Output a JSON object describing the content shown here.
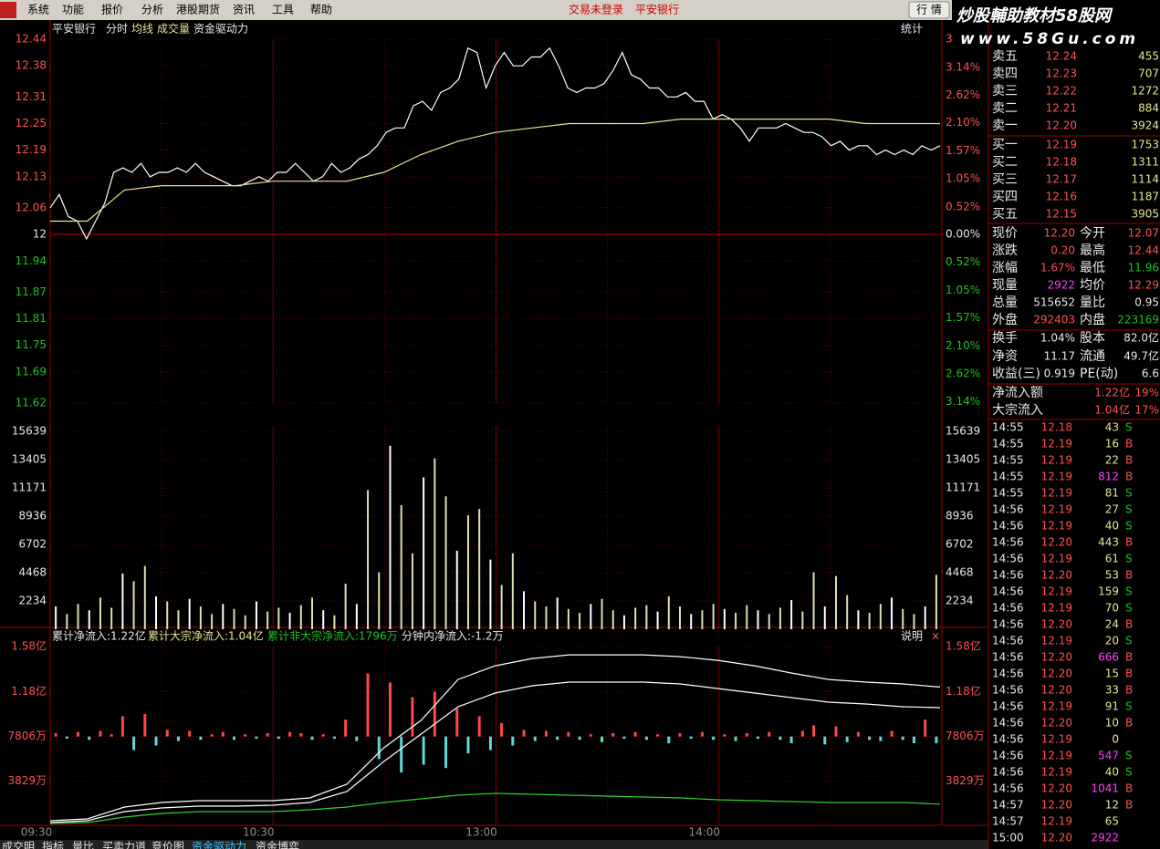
{
  "menu": {
    "items": [
      "系统",
      "功能",
      "报价",
      "分析",
      "港股期货",
      "资讯",
      "工具",
      "帮助"
    ],
    "status": [
      "交易未登录",
      "平安银行"
    ],
    "button": "行 情",
    "banner": {
      "title": "炒股輔助教材58股网",
      "url": "www.58Gu.com"
    }
  },
  "chart_header": {
    "stock": "平安银行",
    "tabs": [
      "分时",
      "均线",
      "成交量",
      "资金驱动力"
    ],
    "stats": "统计"
  },
  "flow_header": {
    "items": [
      "累计净流入:1.22亿",
      "累计大宗净流入:1.04亿",
      "累计非大宗净流入:1796万",
      "分钟内净流入:-1.2万"
    ],
    "help": "说明",
    "close": "×"
  },
  "chart_data": [
    {
      "type": "line",
      "baseline": 12,
      "series": [
        {
          "color": "#ffffff",
          "values": [
            12.06,
            12.09,
            12.04,
            12.03,
            11.99,
            12.03,
            12.07,
            12.14,
            12.15,
            12.14,
            12.16,
            12.13,
            12.14,
            12.14,
            12.15,
            12.14,
            12.16,
            12.14,
            12.13,
            12.12,
            12.11,
            12.11,
            12.12,
            12.13,
            12.12,
            12.14,
            12.14,
            12.16,
            12.14,
            12.12,
            12.13,
            12.16,
            12.14,
            12.15,
            12.17,
            12.18,
            12.2,
            12.23,
            12.24,
            12.24,
            12.29,
            12.3,
            12.28,
            12.32,
            12.33,
            12.35,
            12.42,
            12.41,
            12.33,
            12.38,
            12.41,
            12.38,
            12.38,
            12.4,
            12.4,
            12.42,
            12.38,
            12.33,
            12.32,
            12.33,
            12.33,
            12.34,
            12.37,
            12.41,
            12.36,
            12.35,
            12.33,
            12.33,
            12.31,
            12.31,
            12.32,
            12.3,
            12.3,
            12.26,
            12.27,
            12.26,
            12.24,
            12.21,
            12.24,
            12.24,
            12.24,
            12.25,
            12.24,
            12.23,
            12.23,
            12.22,
            12.2,
            12.21,
            12.19,
            12.2,
            12.2,
            12.18,
            12.19,
            12.18,
            12.19,
            12.18,
            12.2,
            12.19,
            12.2
          ]
        },
        {
          "color": "#e6e68c",
          "values": [
            12.03,
            12.03,
            12.1,
            12.11,
            12.11,
            12.11,
            12.12,
            12.12,
            12.12,
            12.14,
            12.18,
            12.21,
            12.23,
            12.24,
            12.25,
            12.25,
            12.25,
            12.26,
            12.26,
            12.26,
            12.26,
            12.26,
            12.25,
            12.25,
            12.25
          ]
        }
      ],
      "ylim": [
        11.62,
        12.44
      ],
      "yticks": [
        12.44,
        12.38,
        12.31,
        12.25,
        12.19,
        12.13,
        12.06,
        12,
        11.94,
        11.87,
        11.81,
        11.75,
        11.69,
        11.62
      ],
      "y2lim": [
        -3.17,
        3.67
      ],
      "y2ticks": [
        {
          "value": 3.67,
          "label": "3"
        },
        {
          "value": 3.14,
          "label": "3.14%"
        },
        {
          "value": 2.62,
          "label": "2.62%"
        },
        {
          "value": 2.1,
          "label": "2.10%"
        },
        {
          "value": 1.57,
          "label": "1.57%"
        },
        {
          "value": 1.05,
          "label": "1.05%"
        },
        {
          "value": 0.52,
          "label": "0.52%"
        },
        {
          "value": 0,
          "label": "0.00%"
        },
        {
          "value": -0.52,
          "label": "0.52%"
        },
        {
          "value": -1.05,
          "label": "1.05%"
        },
        {
          "value": -1.57,
          "label": "1.57%"
        },
        {
          "value": -2.1,
          "label": "2.10%"
        },
        {
          "value": -2.62,
          "label": "2.62%"
        },
        {
          "value": -3.14,
          "label": "3.14%"
        }
      ]
    },
    {
      "type": "bar",
      "color": "#e0e0b0",
      "values": [
        1800,
        1200,
        2000,
        1500,
        2500,
        1700,
        4400,
        3800,
        5000,
        2600,
        2200,
        1500,
        2400,
        1800,
        1200,
        2000,
        1600,
        1100,
        2200,
        1400,
        1700,
        1300,
        1900,
        2500,
        1500,
        1100,
        3600,
        2000,
        11000,
        4500,
        14500,
        9800,
        6000,
        12000,
        13500,
        10500,
        6200,
        9000,
        9500,
        5500,
        3500,
        6000,
        3000,
        2200,
        1800,
        2500,
        1600,
        1300,
        2000,
        2400,
        1500,
        1100,
        1700,
        1900,
        1400,
        2600,
        1800,
        1200,
        1500,
        2000,
        1600,
        1300,
        1900,
        1500,
        1200,
        1700,
        2300,
        1400,
        4500,
        1800,
        4200,
        2700,
        1500,
        1300,
        2000,
        2500,
        1600,
        1200,
        1800,
        4300
      ],
      "ylim": [
        0,
        15639
      ],
      "yticks": [
        15639,
        13405,
        11171,
        8936,
        6702,
        4468,
        2234
      ]
    },
    {
      "type": "line",
      "series": [
        {
          "color": "#ffffff",
          "values": [
            324,
            486,
            1539,
            1944,
            2106,
            2106,
            2106,
            2349,
            3564,
            6804,
            9234,
            12879,
            14094,
            14742,
            15066,
            15066,
            15066,
            14904,
            14580,
            14094,
            13446,
            12879,
            12636,
            12474,
            12200
          ]
        },
        {
          "color": "#ffffff",
          "values": [
            162,
            324,
            1134,
            1458,
            1620,
            1620,
            1701,
            1944,
            2916,
            5589,
            8019,
            10449,
            11664,
            12312,
            12636,
            12636,
            12636,
            12474,
            12069,
            11664,
            11259,
            10854,
            10692,
            10449,
            10368
          ]
        },
        {
          "color": "#30d030",
          "values": [
            81,
            162,
            648,
            972,
            1134,
            1134,
            1134,
            1296,
            1539,
            1944,
            2268,
            2592,
            2754,
            2673,
            2592,
            2511,
            2430,
            2349,
            2187,
            2106,
            2025,
            1944,
            1944,
            1944,
            1796
          ]
        }
      ],
      "bars": {
        "base": 7806,
        "up_color": "#ff4848",
        "down_color": "#60d8d8",
        "values": [
          300,
          -200,
          400,
          -300,
          500,
          200,
          1800,
          -1200,
          2000,
          -800,
          600,
          -400,
          500,
          -300,
          200,
          400,
          -300,
          200,
          -200,
          300,
          -200,
          400,
          300,
          -300,
          200,
          -200,
          1500,
          -400,
          5600,
          -2000,
          4800,
          -3200,
          3500,
          -2500,
          4000,
          -2800,
          2500,
          -1500,
          1800,
          -1200,
          1200,
          -800,
          600,
          -400,
          500,
          -300,
          400,
          -300,
          200,
          -500,
          300,
          -200,
          400,
          -300,
          200,
          -600,
          300,
          -200,
          400,
          -300,
          200,
          -400,
          300,
          -200,
          400,
          -300,
          -600,
          500,
          1000,
          -700,
          900,
          -500,
          400,
          -300,
          -400,
          500,
          -300,
          -600,
          1500,
          -600
        ]
      },
      "ylim": [
        0,
        15800
      ],
      "yticks": [
        {
          "value": 15800,
          "label": "1.58亿"
        },
        {
          "value": 11800,
          "label": "1.18亿"
        },
        {
          "value": 7806,
          "label": "7806万"
        },
        {
          "value": 3829,
          "label": "3829万"
        }
      ],
      "xticks": [
        "09:30",
        "10:30",
        "13:00",
        "14:00"
      ]
    }
  ],
  "order_book": [
    [
      "卖五",
      "12.24",
      "455"
    ],
    [
      "卖四",
      "12.23",
      "707"
    ],
    [
      "卖三",
      "12.22",
      "1272"
    ],
    [
      "卖二",
      "12.21",
      "884"
    ],
    [
      "卖一",
      "12.20",
      "3924"
    ],
    [
      "买一",
      "12.19",
      "1753"
    ],
    [
      "买二",
      "12.18",
      "1311"
    ],
    [
      "买三",
      "12.17",
      "1114"
    ],
    [
      "买四",
      "12.16",
      "1187"
    ],
    [
      "买五",
      "12.15",
      "3905"
    ]
  ],
  "quote": [
    [
      "现价",
      "12.20",
      "今开",
      "12.07"
    ],
    [
      "涨跌",
      "0.20",
      "最高",
      "12.44"
    ],
    [
      "涨幅",
      "1.67%",
      "最低",
      "11.96"
    ],
    [
      "现量",
      "2922",
      "均价",
      "12.29"
    ],
    [
      "总量",
      "515652",
      "量比",
      "0.95"
    ],
    [
      "外盘",
      "292403",
      "内盘",
      "223169"
    ],
    [
      "换手",
      "1.04%",
      "股本",
      "82.0亿"
    ],
    [
      "净资",
      "11.17",
      "流通",
      "49.7亿"
    ],
    [
      "收益(三)",
      "0.919",
      "PE(动)",
      "6.6"
    ],
    [
      "净流入额",
      "1.22亿",
      "19%"
    ],
    [
      "大宗流入",
      "1.04亿",
      "17%"
    ]
  ],
  "trades": [
    [
      "14:55",
      "12.18",
      "43",
      "S"
    ],
    [
      "14:55",
      "12.19",
      "16",
      "B"
    ],
    [
      "14:55",
      "12.19",
      "22",
      "B"
    ],
    [
      "14:55",
      "12.19",
      "812",
      "B"
    ],
    [
      "14:55",
      "12.19",
      "81",
      "S"
    ],
    [
      "14:56",
      "12.19",
      "27",
      "S"
    ],
    [
      "14:56",
      "12.19",
      "40",
      "S"
    ],
    [
      "14:56",
      "12.20",
      "443",
      "B"
    ],
    [
      "14:56",
      "12.19",
      "61",
      "S"
    ],
    [
      "14:56",
      "12.20",
      "53",
      "B"
    ],
    [
      "14:56",
      "12.19",
      "159",
      "S"
    ],
    [
      "14:56",
      "12.19",
      "70",
      "S"
    ],
    [
      "14:56",
      "12.20",
      "24",
      "B"
    ],
    [
      "14:56",
      "12.19",
      "20",
      "S"
    ],
    [
      "14:56",
      "12.20",
      "666",
      "B"
    ],
    [
      "14:56",
      "12.20",
      "15",
      "B"
    ],
    [
      "14:56",
      "12.20",
      "33",
      "B"
    ],
    [
      "14:56",
      "12.19",
      "91",
      "S"
    ],
    [
      "14:56",
      "12.20",
      "10",
      "B"
    ],
    [
      "14:56",
      "12.19",
      "0"
    ],
    [
      "14:56",
      "12.19",
      "547",
      "S"
    ],
    [
      "14:56",
      "12.19",
      "40",
      "S"
    ],
    [
      "14:56",
      "12.20",
      "1041",
      "B"
    ],
    [
      "14:57",
      "12.20",
      "12",
      "B"
    ],
    [
      "14:57",
      "12.19",
      "65"
    ],
    [
      "15:00",
      "12.20",
      "2922"
    ]
  ],
  "tabs": [
    "成交明",
    "指标",
    "量比",
    "买卖力道",
    "竞价图",
    "资金驱动力",
    "资金博弈"
  ]
}
